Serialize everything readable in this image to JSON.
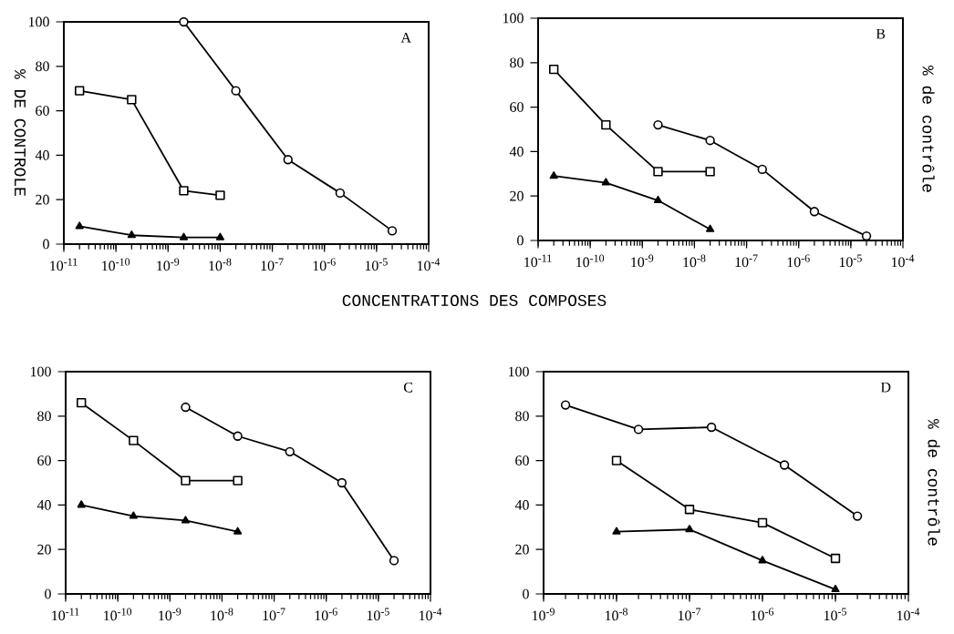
{
  "chart_data": [
    {
      "type": "line",
      "log": "x",
      "xlabel": "CONCENTRATIONS DES COMPOSES",
      "ylabel": "% DE CONTROLE",
      "annotations": [
        "A"
      ],
      "grid": false,
      "xlim": [
        1e-11,
        0.0001
      ],
      "xticks": [
        {
          "value": 1e-11,
          "label": "10$^{-11}$"
        },
        {
          "value": 1e-10,
          "label": "10$^{-10}$"
        },
        {
          "value": 1e-09,
          "label": "10$^{-9}$"
        },
        {
          "value": 1e-08,
          "label": "10$^{-8}$"
        },
        {
          "value": 1e-07,
          "label": "10$^{-7}$"
        },
        {
          "value": 1e-06,
          "label": "10$^{-6}$"
        },
        {
          "value": 1e-05,
          "label": "10$^{-5}$"
        },
        {
          "value": 0.0001,
          "label": "10$^{-4}$"
        }
      ],
      "ylim": [
        0,
        100
      ],
      "yticks": [
        0,
        20,
        40,
        60,
        80,
        100
      ],
      "series": [
        {
          "marker": "square",
          "color": "#000000",
          "x": [
            2e-11,
            2e-10,
            2e-09,
            1e-08
          ],
          "values": [
            69,
            65,
            24,
            22
          ]
        },
        {
          "marker": "circle",
          "color": "#000000",
          "x": [
            2e-09,
            2e-08,
            2e-07,
            2e-06,
            2e-05
          ],
          "values": [
            100,
            69,
            38,
            23,
            6
          ]
        },
        {
          "marker": "triangle",
          "color": "#000000",
          "x": [
            2e-11,
            2e-10,
            2e-09,
            1e-08
          ],
          "values": [
            8,
            4,
            3,
            3
          ]
        }
      ]
    },
    {
      "type": "line",
      "log": "x",
      "ylabel": "% de contrôle",
      "annotations": [
        "B"
      ],
      "grid": false,
      "xlim": [
        1e-11,
        0.0001
      ],
      "xticks": [
        {
          "value": 1e-11,
          "label": "10$^{-11}$"
        },
        {
          "value": 1e-10,
          "label": "10$^{-10}$"
        },
        {
          "value": 1e-09,
          "label": "10$^{-9}$"
        },
        {
          "value": 1e-08,
          "label": "10$^{-8}$"
        },
        {
          "value": 1e-07,
          "label": "10$^{-7}$"
        },
        {
          "value": 1e-06,
          "label": "10$^{-6}$"
        },
        {
          "value": 1e-05,
          "label": "10$^{-5}$"
        },
        {
          "value": 0.0001,
          "label": "10$^{-4}$"
        }
      ],
      "ylim": [
        0,
        100
      ],
      "yticks": [
        0,
        20,
        40,
        60,
        80,
        100
      ],
      "series": [
        {
          "marker": "square",
          "color": "#000000",
          "x": [
            2e-11,
            2e-10,
            2e-09,
            2e-08
          ],
          "values": [
            77,
            52,
            31,
            31
          ]
        },
        {
          "marker": "circle",
          "color": "#000000",
          "x": [
            2e-09,
            2e-08,
            2e-07,
            2e-06,
            2e-05
          ],
          "values": [
            52,
            45,
            32,
            13,
            2
          ]
        },
        {
          "marker": "triangle",
          "color": "#000000",
          "x": [
            2e-11,
            2e-10,
            2e-09,
            2e-08
          ],
          "values": [
            29,
            26,
            18,
            5
          ]
        }
      ]
    },
    {
      "type": "line",
      "log": "x",
      "annotations": [
        "C"
      ],
      "grid": false,
      "xlim": [
        1e-11,
        0.0001
      ],
      "xticks": [
        {
          "value": 1e-11,
          "label": "10$^{-11}$"
        },
        {
          "value": 1e-10,
          "label": "10$^{-10}$"
        },
        {
          "value": 1e-09,
          "label": "10$^{-9}$"
        },
        {
          "value": 1e-08,
          "label": "10$^{-8}$"
        },
        {
          "value": 1e-07,
          "label": "10$^{-7}$"
        },
        {
          "value": 1e-06,
          "label": "10$^{-6}$"
        },
        {
          "value": 1e-05,
          "label": "10$^{-5}$"
        },
        {
          "value": 0.0001,
          "label": "10$^{-4}$"
        }
      ],
      "ylim": [
        0,
        100
      ],
      "yticks": [
        0,
        20,
        40,
        60,
        80,
        100
      ],
      "series": [
        {
          "marker": "square",
          "color": "#000000",
          "x": [
            2e-11,
            2e-10,
            2e-09,
            2e-08
          ],
          "values": [
            86,
            69,
            51,
            51
          ]
        },
        {
          "marker": "circle",
          "color": "#000000",
          "x": [
            2e-09,
            2e-08,
            2e-07,
            2e-06,
            2e-05
          ],
          "values": [
            84,
            71,
            64,
            50,
            15
          ]
        },
        {
          "marker": "triangle",
          "color": "#000000",
          "x": [
            2e-11,
            2e-10,
            2e-09,
            2e-08
          ],
          "values": [
            40,
            35,
            33,
            28
          ]
        }
      ]
    },
    {
      "type": "line",
      "log": "x",
      "ylabel": "% de contrôle",
      "annotations": [
        "D"
      ],
      "grid": false,
      "xlim": [
        1e-09,
        0.0001
      ],
      "xticks": [
        {
          "value": 1e-09,
          "label": "10$^{-9}$"
        },
        {
          "value": 1e-08,
          "label": "10$^{-8}$"
        },
        {
          "value": 1e-07,
          "label": "10$^{-7}$"
        },
        {
          "value": 1e-06,
          "label": "10$^{-6}$"
        },
        {
          "value": 1e-05,
          "label": "10$^{-5}$"
        },
        {
          "value": 0.0001,
          "label": "10$^{-4}$"
        }
      ],
      "ylim": [
        0,
        100
      ],
      "yticks": [
        0,
        20,
        40,
        60,
        80,
        100
      ],
      "series": [
        {
          "marker": "circle",
          "color": "#000000",
          "x": [
            2e-09,
            2e-08,
            2e-07,
            2e-06,
            2e-05
          ],
          "values": [
            85,
            74,
            75,
            58,
            35
          ]
        },
        {
          "marker": "square",
          "color": "#000000",
          "x": [
            1e-08,
            1e-07,
            1e-06,
            1e-05
          ],
          "values": [
            60,
            38,
            32,
            16
          ]
        },
        {
          "marker": "triangle",
          "color": "#000000",
          "x": [
            1e-08,
            1e-07,
            1e-06,
            1e-05
          ],
          "values": [
            28,
            29,
            15,
            2
          ]
        }
      ]
    }
  ]
}
